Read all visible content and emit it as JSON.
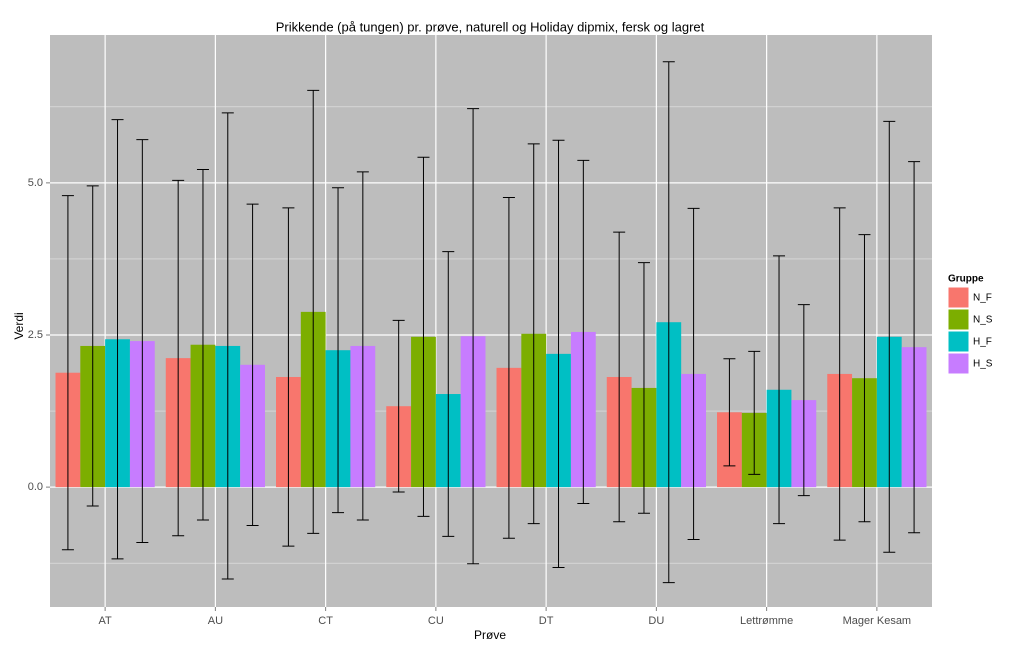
{
  "chart_data": {
    "type": "bar",
    "title": "Prikkende (på tungen) pr. prøve, naturell og Holiday dipmix, fersk og lagret",
    "x_label": "Prøve",
    "y_label": "Verdi",
    "categories": [
      "AT",
      "AU",
      "CT",
      "CU",
      "DT",
      "DU",
      "Lettrømme",
      "Mager Kesam"
    ],
    "legend_title": "Gruppe",
    "series": [
      {
        "name": "N_F",
        "color": "#F8766D",
        "values": [
          1.88,
          2.12,
          1.81,
          1.33,
          1.96,
          1.81,
          1.23,
          1.86
        ],
        "errors": [
          2.91,
          2.92,
          2.78,
          1.41,
          2.8,
          2.38,
          0.88,
          2.73
        ]
      },
      {
        "name": "N_S",
        "color": "#7CAE00",
        "values": [
          2.32,
          2.34,
          2.88,
          2.47,
          2.52,
          1.63,
          1.22,
          1.79
        ],
        "errors": [
          2.63,
          2.88,
          3.64,
          2.95,
          3.12,
          2.06,
          1.01,
          2.36
        ]
      },
      {
        "name": "H_F",
        "color": "#00BFC4",
        "values": [
          2.43,
          2.32,
          2.25,
          1.53,
          2.19,
          2.71,
          1.6,
          2.47
        ],
        "errors": [
          3.61,
          3.83,
          2.67,
          2.34,
          3.51,
          4.28,
          2.2,
          3.54
        ]
      },
      {
        "name": "H_S",
        "color": "#C77CFF",
        "values": [
          2.4,
          2.01,
          2.32,
          2.48,
          2.55,
          1.86,
          1.43,
          2.3
        ],
        "errors": [
          3.31,
          2.64,
          2.86,
          3.74,
          2.82,
          2.72,
          1.57,
          3.05
        ]
      }
    ],
    "ylim": [
      -1.97,
      7.43
    ],
    "yticks": [
      {
        "value": 0,
        "label": "0.0"
      },
      {
        "value": 2.5,
        "label": "2.5"
      },
      {
        "value": 5,
        "label": "5.0"
      }
    ],
    "minor_yticks": [
      -1.25,
      1.25,
      3.75,
      6.25
    ],
    "grid": true,
    "background": "#BDBDBD",
    "legend_position": "right"
  }
}
